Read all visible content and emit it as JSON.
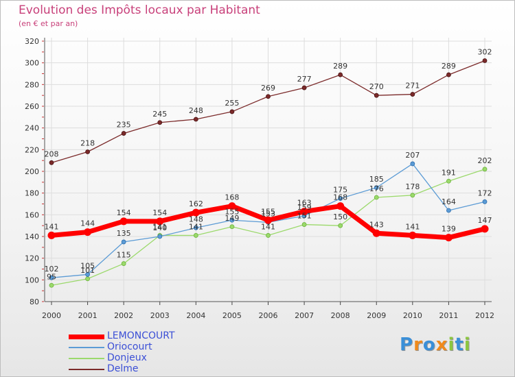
{
  "title": "Evolution des Impôts locaux par Habitant",
  "subtitle": "(en € et par an)",
  "logo": {
    "letters": [
      "P",
      "r",
      "o",
      "x",
      "i",
      "t",
      "i"
    ],
    "colors": [
      "#3a8fd8",
      "#f08a1c",
      "#3a8fd8",
      "#f08a1c",
      "#8cc63f",
      "#3a8fd8",
      "#8cc63f"
    ]
  },
  "chart_data": {
    "type": "line",
    "title": "Evolution des Impôts locaux par Habitant",
    "subtitle": "(en € et par an)",
    "x": [
      "2000",
      "2001",
      "2002",
      "2003",
      "2004",
      "2005",
      "2006",
      "2007",
      "2008",
      "2009",
      "2010",
      "2011",
      "2012"
    ],
    "ylim": [
      80,
      320
    ],
    "yticks": [
      80,
      100,
      120,
      140,
      160,
      180,
      200,
      220,
      240,
      260,
      280,
      300,
      320
    ],
    "grid": true,
    "legend_position": "bottom-left",
    "series": [
      {
        "name": "LEMONCOURT",
        "color": "#ff0000",
        "values": [
          141,
          144,
          154,
          154,
          162,
          168,
          155,
          163,
          168,
          143,
          141,
          139,
          147
        ]
      },
      {
        "name": "Oriocourt",
        "color": "#5b9bd5",
        "values": [
          102,
          105,
          135,
          140,
          148,
          155,
          153,
          159,
          175,
          185,
          207,
          164,
          172
        ]
      },
      {
        "name": "Donjeux",
        "color": "#9bd96b",
        "values": [
          95,
          101,
          115,
          141,
          141,
          149,
          141,
          151,
          150,
          176,
          178,
          191,
          202
        ]
      },
      {
        "name": "Delme",
        "color": "#7b2a2a",
        "values": [
          208,
          218,
          235,
          245,
          248,
          255,
          269,
          277,
          289,
          270,
          271,
          289,
          302
        ]
      }
    ]
  }
}
